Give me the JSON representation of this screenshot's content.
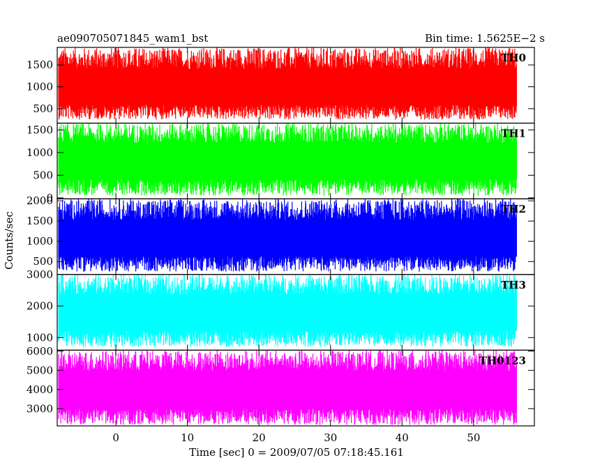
{
  "chart_data": {
    "type": "line",
    "title_left": "ae090705071845_wam1_bst",
    "title_right": "Bin time: 1.5625E−2 s",
    "xlabel": "Time [sec] 0 = 2009/07/05 07:18:45.161",
    "ylabel": "Counts/sec",
    "xlim": [
      -8.2,
      58.5
    ],
    "x_ticks": [
      0,
      10,
      20,
      30,
      40,
      50
    ],
    "x_tick_labels": [
      "0",
      "10",
      "20",
      "30",
      "40",
      "50"
    ],
    "x_data_range": [
      -8.0,
      56.0
    ],
    "bin_time": 0.015625,
    "panels": [
      {
        "name": "TH0",
        "color": "#ff0000",
        "ylim": [
          170,
          1900
        ],
        "yticks": [
          500,
          1000,
          1500
        ],
        "ytick_labels": [
          "500",
          "1000",
          "1500"
        ],
        "mean": 1000,
        "low": 250,
        "high": 1900
      },
      {
        "name": "TH1",
        "color": "#00ff00",
        "ylim": [
          -20,
          1650
        ],
        "yticks": [
          0,
          500,
          1000,
          1500
        ],
        "ytick_labels": [
          "0",
          "500",
          "1000",
          "1500"
        ],
        "mean": 850,
        "low": 50,
        "high": 1650
      },
      {
        "name": "TH2",
        "color": "#0000ff",
        "ylim": [
          180,
          2050
        ],
        "yticks": [
          500,
          1000,
          1500,
          2000
        ],
        "ytick_labels": [
          "500",
          "1000",
          "1500",
          "2000"
        ],
        "mean": 1100,
        "low": 250,
        "high": 2050
      },
      {
        "name": "TH3",
        "color": "#00ffff",
        "ylim": [
          600,
          3000
        ],
        "yticks": [
          1000,
          2000,
          3000
        ],
        "ytick_labels": [
          "1000",
          "2000",
          "3000"
        ],
        "mean": 1850,
        "low": 700,
        "high": 3000
      },
      {
        "name": "TH0123",
        "color": "#ff00ff",
        "ylim": [
          2100,
          6050
        ],
        "yticks": [
          3000,
          4000,
          5000,
          6000
        ],
        "ytick_labels": [
          "3000",
          "4000",
          "5000",
          "6000"
        ],
        "mean": 4050,
        "low": 2150,
        "high": 6050
      }
    ]
  }
}
